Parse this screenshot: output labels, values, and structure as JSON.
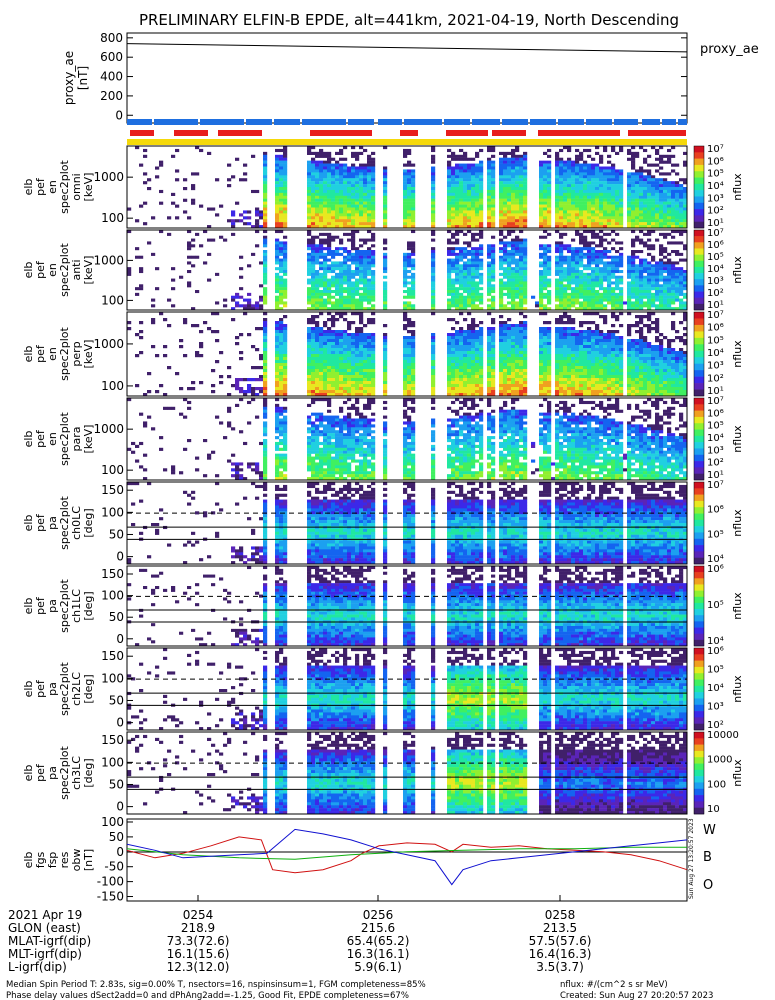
{
  "title": "PRELIMINARY ELFIN-B EPDE, alt=441km, 2021-04-19, North Descending",
  "colors": {
    "flag_blue": "#1e6fe0",
    "flag_red": "#e81c1c",
    "flag_yellow": "#f5d90a",
    "trace_red": "#d01010",
    "trace_green": "#10b010",
    "trace_blue": "#1010d0"
  },
  "chart_data": [
    {
      "type": "line",
      "name": "proxy_ae",
      "ylabel": [
        "proxy_ae",
        "[nT]"
      ],
      "legend": "proxy_ae",
      "yticks": [
        0,
        200,
        400,
        600,
        800
      ],
      "ylim": [
        -80,
        850
      ],
      "series": [
        {
          "x": [
            0,
            1
          ],
          "values": [
            740,
            655
          ]
        }
      ]
    },
    {
      "type": "heatmap",
      "name": "spectrogram stack",
      "panels": [
        {
          "ylabel": [
            "elb",
            "pef",
            "en",
            "spec2plot",
            "omni",
            "[keV]"
          ],
          "yticks": [
            "1000",
            "100"
          ],
          "cbar_label": "nflux",
          "cbar": [
            "10⁷",
            "10⁶",
            "10⁵",
            "10⁴",
            "10³",
            "10²",
            "10¹"
          ]
        },
        {
          "ylabel": [
            "elb",
            "pef",
            "en",
            "spec2plot",
            "anti",
            "[keV]"
          ],
          "yticks": [
            "1000",
            "100"
          ],
          "cbar_label": "nflux",
          "cbar": [
            "10⁷",
            "10⁶",
            "10⁵",
            "10⁴",
            "10³",
            "10²",
            "10¹"
          ]
        },
        {
          "ylabel": [
            "elb",
            "pef",
            "en",
            "spec2plot",
            "perp",
            "[keV]"
          ],
          "yticks": [
            "1000",
            "100"
          ],
          "cbar_label": "nflux",
          "cbar": [
            "10⁷",
            "10⁶",
            "10⁵",
            "10⁴",
            "10³",
            "10²",
            "10¹"
          ]
        },
        {
          "ylabel": [
            "elb",
            "pef",
            "en",
            "spec2plot",
            "para",
            "[keV]"
          ],
          "yticks": [
            "1000",
            "100"
          ],
          "cbar_label": "nflux",
          "cbar": [
            "10⁷",
            "10⁶",
            "10⁵",
            "10⁴",
            "10³",
            "10²",
            "10¹"
          ]
        },
        {
          "ylabel": [
            "elb",
            "pef",
            "pa",
            "spec2plot",
            "ch0LC",
            "[deg]"
          ],
          "yticks": [
            "150",
            "100",
            "50",
            "0"
          ],
          "cbar_label": "nflux",
          "cbar": [
            "10⁷",
            "10⁶",
            "10⁵",
            "10⁴"
          ]
        },
        {
          "ylabel": [
            "elb",
            "pef",
            "pa",
            "spec2plot",
            "ch1LC",
            "[deg]"
          ],
          "yticks": [
            "150",
            "100",
            "50",
            "0"
          ],
          "cbar_label": "nflux",
          "cbar": [
            "10⁶",
            "10⁵",
            "10⁴"
          ]
        },
        {
          "ylabel": [
            "elb",
            "pef",
            "pa",
            "spec2plot",
            "ch2LC",
            "[deg]"
          ],
          "yticks": [
            "150",
            "100",
            "50",
            "0"
          ],
          "cbar_label": "nflux",
          "cbar": [
            "10⁶",
            "10⁵",
            "10⁴",
            "10³",
            "10²"
          ]
        },
        {
          "ylabel": [
            "elb",
            "pef",
            "pa",
            "spec2plot",
            "ch3LC",
            "[deg]"
          ],
          "yticks": [
            "150",
            "100",
            "50",
            "0"
          ],
          "cbar_label": "nflux",
          "cbar": [
            "10000",
            "1000",
            "100",
            "10"
          ]
        }
      ]
    },
    {
      "type": "line",
      "name": "elb_fgs_fsp_res_obw",
      "ylabel": [
        "elb",
        "fgs",
        "fsp",
        "res",
        "obw",
        "[nT]"
      ],
      "yticks": [
        100,
        50,
        0,
        -50,
        -100,
        -150
      ],
      "ylim": [
        -165,
        110
      ],
      "legend": [
        "W",
        "B",
        "O"
      ],
      "series": [
        {
          "name": "W",
          "x": [
            0,
            0.05,
            0.1,
            0.15,
            0.2,
            0.24,
            0.26,
            0.3,
            0.35,
            0.4,
            0.42,
            0.45,
            0.5,
            0.55,
            0.58,
            0.6,
            0.65,
            0.7,
            0.75,
            0.8,
            0.85,
            0.9,
            0.95,
            1.0
          ],
          "values": [
            5,
            -20,
            -5,
            20,
            50,
            40,
            -60,
            -70,
            -60,
            -30,
            -5,
            20,
            30,
            25,
            0,
            25,
            15,
            20,
            10,
            5,
            0,
            -10,
            -30,
            -60
          ]
        },
        {
          "name": "B",
          "x": [
            0,
            0.1,
            0.2,
            0.3,
            0.4,
            0.5,
            0.6,
            0.7,
            0.8,
            0.9,
            1.0
          ],
          "values": [
            10,
            -10,
            -20,
            -25,
            -10,
            0,
            5,
            10,
            10,
            15,
            15
          ]
        },
        {
          "name": "O",
          "x": [
            0,
            0.05,
            0.1,
            0.15,
            0.2,
            0.25,
            0.3,
            0.35,
            0.4,
            0.45,
            0.5,
            0.55,
            0.58,
            0.6,
            0.65,
            0.7,
            0.75,
            0.8,
            0.85,
            0.9,
            0.95,
            1.0
          ],
          "values": [
            25,
            5,
            -20,
            -15,
            -10,
            -5,
            75,
            60,
            40,
            10,
            -10,
            -30,
            -110,
            -60,
            -30,
            -20,
            -10,
            0,
            10,
            20,
            30,
            40
          ]
        }
      ]
    }
  ],
  "time_axis": {
    "labels": [
      "2021 Apr 19",
      "GLON (east)",
      "MLAT-igrf(dip)",
      "MLT-igrf(dip)",
      "L-igrf(dip)"
    ],
    "columns": [
      {
        "time": "0254",
        "vals": [
          "218.9",
          "73.3(72.6)",
          "16.1(15.6)",
          "12.3(12.0)"
        ]
      },
      {
        "time": "0256",
        "vals": [
          "215.6",
          "65.4(65.2)",
          "16.3(16.1)",
          "5.9(6.1)"
        ]
      },
      {
        "time": "0258",
        "vals": [
          "213.5",
          "57.5(57.6)",
          "16.4(16.3)",
          "3.5(3.7)"
        ]
      }
    ]
  },
  "footer": {
    "left1": "Median Spin Period T: 2.83s, sig=0.00% T, nsectors=16, nspinsinsum=1, FGM completeness=85%",
    "left2": "Phase delay values dSect2add=0 and dPhAng2add=-1.25, Good Fit, EPDE completeness=67%",
    "right1": "nflux: #/(cm^2 s sr MeV)",
    "right2": "Created: Sun Aug 27 20:20:57 2023",
    "vertical": "Sun Aug 27 13:20:57 2023"
  }
}
